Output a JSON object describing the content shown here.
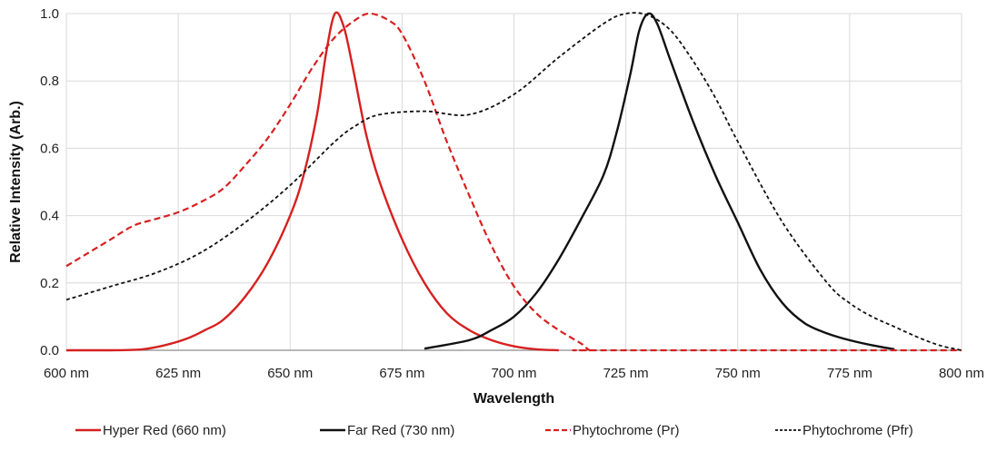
{
  "chart_data": {
    "type": "line",
    "title": "",
    "xlabel": "Wavelength",
    "ylabel": "Relative Intensity (Arb.)",
    "xlim": [
      600,
      800
    ],
    "ylim": [
      0,
      1
    ],
    "grid": true,
    "legend_position": "bottom",
    "x_ticks": [
      600,
      625,
      650,
      675,
      700,
      725,
      750,
      775,
      800
    ],
    "x_tick_labels": [
      "600 nm",
      "625 nm",
      "650 nm",
      "675 nm",
      "700 nm",
      "725 nm",
      "750 nm",
      "775 nm",
      "800 nm"
    ],
    "y_ticks": [
      0,
      0.2,
      0.4,
      0.6,
      0.8,
      1.0
    ],
    "y_tick_labels": [
      "0.0",
      "0.2",
      "0.4",
      "0.6",
      "0.8",
      "1.0"
    ],
    "series": [
      {
        "name": "Hyper Red (660 nm)",
        "color": "#d62020",
        "dash": "solid",
        "x": [
          600,
          610,
          617,
          622,
          627,
          631,
          635,
          640,
          645,
          650,
          653,
          656,
          658,
          660,
          662,
          664,
          667,
          670,
          675,
          680,
          685,
          690,
          695,
          700,
          705,
          710
        ],
        "y": [
          0,
          0,
          0.003,
          0.015,
          0.035,
          0.06,
          0.09,
          0.16,
          0.26,
          0.4,
          0.52,
          0.7,
          0.88,
          1.0,
          0.96,
          0.84,
          0.64,
          0.5,
          0.33,
          0.2,
          0.11,
          0.06,
          0.03,
          0.012,
          0.003,
          0
        ]
      },
      {
        "name": "Far Red (730 nm)",
        "color": "#111111",
        "dash": "solid",
        "x": [
          680,
          690,
          695,
          700,
          705,
          710,
          715,
          720,
          723,
          726,
          728,
          730,
          732,
          735,
          740,
          745,
          750,
          755,
          760,
          765,
          770,
          775,
          780,
          785
        ],
        "y": [
          0.005,
          0.03,
          0.06,
          0.1,
          0.17,
          0.27,
          0.39,
          0.52,
          0.65,
          0.82,
          0.95,
          1.0,
          0.97,
          0.86,
          0.68,
          0.52,
          0.38,
          0.24,
          0.14,
          0.08,
          0.05,
          0.03,
          0.015,
          0.003
        ]
      },
      {
        "name": "Phytochrome (Pr)",
        "color": "#d62020",
        "dash": "dashed",
        "x": [
          600,
          605,
          610,
          615,
          620,
          625,
          630,
          635,
          640,
          645,
          650,
          655,
          660,
          665,
          668,
          672,
          675,
          680,
          685,
          690,
          695,
          700,
          705,
          710,
          715,
          717,
          720,
          800
        ],
        "y": [
          0.25,
          0.29,
          0.33,
          0.37,
          0.39,
          0.41,
          0.44,
          0.48,
          0.55,
          0.63,
          0.73,
          0.84,
          0.93,
          0.985,
          1.0,
          0.98,
          0.94,
          0.8,
          0.62,
          0.46,
          0.31,
          0.19,
          0.11,
          0.06,
          0.02,
          0.0,
          0.0,
          0.0
        ]
      },
      {
        "name": "Phytochrome (Pfr)",
        "color": "#111111",
        "dash": "dotted",
        "x": [
          600,
          610,
          620,
          630,
          640,
          650,
          660,
          665,
          670,
          680,
          690,
          700,
          710,
          720,
          725,
          730,
          735,
          740,
          745,
          750,
          760,
          770,
          775,
          780,
          785,
          790,
          795,
          800
        ],
        "y": [
          0.15,
          0.19,
          0.23,
          0.29,
          0.38,
          0.49,
          0.62,
          0.67,
          0.7,
          0.71,
          0.7,
          0.76,
          0.87,
          0.97,
          1.0,
          0.995,
          0.95,
          0.86,
          0.75,
          0.62,
          0.38,
          0.2,
          0.14,
          0.1,
          0.07,
          0.04,
          0.015,
          0.0
        ]
      }
    ]
  }
}
